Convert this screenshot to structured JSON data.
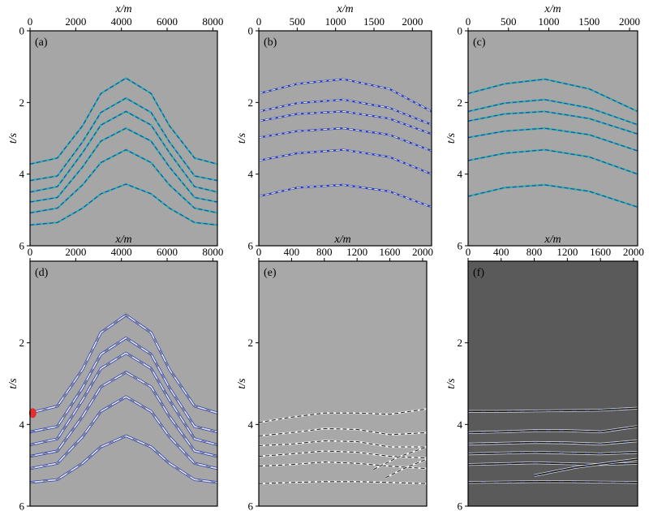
{
  "chart_data": [
    {
      "type": "line",
      "panel_label": "(a)",
      "xlabel": "x/m",
      "ylabel": "t/s",
      "xlim": [
        0,
        8200
      ],
      "ylim": [
        0,
        6
      ],
      "xticks": [
        "0",
        "2000",
        "4000",
        "6000",
        "8000"
      ],
      "yticks": [
        "0",
        "2",
        "4",
        "6"
      ],
      "background": "#a6a6a6",
      "colors": [
        "#2bb5a0",
        "#2a3fb8"
      ],
      "series": [
        {
          "x": [
            0,
            1200,
            2300,
            3100,
            4200,
            5300,
            6100,
            7200,
            8200
          ],
          "y": [
            3.72,
            3.55,
            2.65,
            1.75,
            1.32,
            1.75,
            2.65,
            3.55,
            3.72
          ]
        },
        {
          "x": [
            0,
            1200,
            2300,
            3100,
            4200,
            5300,
            6100,
            7200,
            8200
          ],
          "y": [
            4.18,
            4.05,
            3.1,
            2.28,
            1.88,
            2.28,
            3.1,
            4.05,
            4.18
          ]
        },
        {
          "x": [
            0,
            1200,
            2300,
            3100,
            4200,
            5300,
            6100,
            7200,
            8200
          ],
          "y": [
            4.5,
            4.35,
            3.4,
            2.63,
            2.25,
            2.63,
            3.4,
            4.35,
            4.5
          ]
        },
        {
          "x": [
            0,
            1200,
            2300,
            3100,
            4200,
            5300,
            6100,
            7200,
            8200
          ],
          "y": [
            4.78,
            4.65,
            3.8,
            3.08,
            2.72,
            3.08,
            3.8,
            4.65,
            4.78
          ]
        },
        {
          "x": [
            0,
            1200,
            2300,
            3100,
            4200,
            5300,
            6100,
            7200,
            8200
          ],
          "y": [
            5.08,
            4.95,
            4.3,
            3.68,
            3.32,
            3.68,
            4.3,
            4.95,
            5.08
          ]
        },
        {
          "x": [
            0,
            1200,
            2300,
            3100,
            4200,
            5300,
            6100,
            7200,
            8200
          ],
          "y": [
            5.42,
            5.35,
            4.95,
            4.55,
            4.28,
            4.55,
            4.95,
            5.35,
            5.42
          ]
        }
      ]
    },
    {
      "type": "line",
      "panel_label": "(b)",
      "xlabel": "x/m",
      "ylabel": "t/s",
      "xlim": [
        0,
        2250
      ],
      "ylim": [
        0,
        6
      ],
      "xticks": [
        "0",
        "500",
        "1000",
        "1500",
        "2000"
      ],
      "yticks": [
        "0",
        "2",
        "4",
        "6"
      ],
      "background": "#a6a6a6",
      "colors": [
        "#2a3fb8",
        "#e8e8e8"
      ],
      "series": [
        {
          "x": [
            0,
            500,
            1100,
            1700,
            2250
          ],
          "y": [
            1.75,
            1.48,
            1.35,
            1.62,
            2.25
          ]
        },
        {
          "x": [
            0,
            500,
            1100,
            1700,
            2250
          ],
          "y": [
            2.25,
            2.02,
            1.92,
            2.15,
            2.62
          ]
        },
        {
          "x": [
            0,
            500,
            1100,
            1700,
            2250
          ],
          "y": [
            2.52,
            2.32,
            2.25,
            2.45,
            2.88
          ]
        },
        {
          "x": [
            0,
            500,
            1100,
            1700,
            2250
          ],
          "y": [
            2.98,
            2.8,
            2.72,
            2.9,
            3.35
          ]
        },
        {
          "x": [
            0,
            500,
            1100,
            1700,
            2250
          ],
          "y": [
            3.62,
            3.42,
            3.32,
            3.52,
            4.0
          ]
        },
        {
          "x": [
            0,
            500,
            1100,
            1700,
            2250
          ],
          "y": [
            4.62,
            4.38,
            4.3,
            4.48,
            4.92
          ]
        }
      ]
    },
    {
      "type": "line",
      "panel_label": "(c)",
      "xlabel": "x/m",
      "ylabel": "t/s",
      "xlim": [
        0,
        2100
      ],
      "ylim": [
        0,
        6
      ],
      "xticks": [
        "0",
        "500",
        "1000",
        "1500",
        "2000"
      ],
      "yticks": [
        "0",
        "2",
        "4",
        "6"
      ],
      "background": "#a6a6a6",
      "colors": [
        "#2bb5a0",
        "#2a3fb8"
      ],
      "series": [
        {
          "x": [
            0,
            450,
            950,
            1500,
            2100
          ],
          "y": [
            1.75,
            1.48,
            1.35,
            1.62,
            2.25
          ]
        },
        {
          "x": [
            0,
            450,
            950,
            1500,
            2100
          ],
          "y": [
            2.25,
            2.02,
            1.92,
            2.15,
            2.62
          ]
        },
        {
          "x": [
            0,
            450,
            950,
            1500,
            2100
          ],
          "y": [
            2.52,
            2.32,
            2.25,
            2.45,
            2.88
          ]
        },
        {
          "x": [
            0,
            450,
            950,
            1500,
            2100
          ],
          "y": [
            2.98,
            2.8,
            2.72,
            2.9,
            3.35
          ]
        },
        {
          "x": [
            0,
            450,
            950,
            1500,
            2100
          ],
          "y": [
            3.62,
            3.42,
            3.32,
            3.52,
            4.0
          ]
        },
        {
          "x": [
            0,
            450,
            950,
            1500,
            2100
          ],
          "y": [
            4.62,
            4.38,
            4.3,
            4.48,
            4.92
          ]
        }
      ]
    },
    {
      "type": "line",
      "panel_label": "(d)",
      "xlabel": "x/m",
      "ylabel": "t/s",
      "xlim": [
        0,
        8200
      ],
      "ylim": [
        0,
        6
      ],
      "xticks": [
        "0",
        "2000",
        "4000",
        "6000",
        "8000"
      ],
      "yticks": [
        "2",
        "4",
        "6"
      ],
      "background": "#a6a6a6",
      "colors": [
        "#2a3fb8",
        "#e8e8e8",
        "#1a1a1a",
        "#e03030"
      ],
      "marker": {
        "x": 120,
        "y": 3.72
      },
      "series": [
        {
          "x": [
            0,
            1200,
            2300,
            3100,
            4200,
            5300,
            6100,
            7200,
            8200
          ],
          "y": [
            3.72,
            3.55,
            2.65,
            1.75,
            1.32,
            1.75,
            2.65,
            3.55,
            3.72
          ]
        },
        {
          "x": [
            0,
            1200,
            2300,
            3100,
            4200,
            5300,
            6100,
            7200,
            8200
          ],
          "y": [
            4.18,
            4.05,
            3.1,
            2.28,
            1.88,
            2.28,
            3.1,
            4.05,
            4.18
          ]
        },
        {
          "x": [
            0,
            1200,
            2300,
            3100,
            4200,
            5300,
            6100,
            7200,
            8200
          ],
          "y": [
            4.5,
            4.35,
            3.4,
            2.63,
            2.25,
            2.63,
            3.4,
            4.35,
            4.5
          ]
        },
        {
          "x": [
            0,
            1200,
            2300,
            3100,
            4200,
            5300,
            6100,
            7200,
            8200
          ],
          "y": [
            4.78,
            4.65,
            3.8,
            3.08,
            2.72,
            3.08,
            3.8,
            4.65,
            4.78
          ]
        },
        {
          "x": [
            0,
            1200,
            2300,
            3100,
            4200,
            5300,
            6100,
            7200,
            8200
          ],
          "y": [
            5.08,
            4.95,
            4.3,
            3.68,
            3.32,
            3.68,
            4.3,
            4.95,
            5.08
          ]
        },
        {
          "x": [
            0,
            1200,
            2300,
            3100,
            4200,
            5300,
            6100,
            7200,
            8200
          ],
          "y": [
            5.42,
            5.35,
            4.95,
            4.55,
            4.28,
            4.55,
            4.95,
            5.35,
            5.42
          ]
        }
      ]
    },
    {
      "type": "line",
      "panel_label": "(e)",
      "xlabel": "x/m",
      "ylabel": "t/s",
      "xlim": [
        0,
        2050
      ],
      "ylim": [
        0,
        6
      ],
      "xticks": [
        "0",
        "400",
        "800",
        "1200",
        "1600",
        "2000"
      ],
      "yticks": [
        "2",
        "4",
        "6"
      ],
      "background": "#a8a8a8",
      "colors": [
        "#f2f2f2",
        "#2a2a2a"
      ],
      "series": [
        {
          "x": [
            0,
            400,
            800,
            1200,
            1600,
            2050
          ],
          "y": [
            3.95,
            3.82,
            3.72,
            3.72,
            3.75,
            3.62
          ]
        },
        {
          "x": [
            0,
            400,
            800,
            1200,
            1600,
            2050
          ],
          "y": [
            4.28,
            4.2,
            4.1,
            4.12,
            4.25,
            4.2
          ]
        },
        {
          "x": [
            0,
            400,
            800,
            1200,
            1600,
            2050
          ],
          "y": [
            4.52,
            4.48,
            4.4,
            4.42,
            4.55,
            4.55
          ]
        },
        {
          "x": [
            0,
            400,
            800,
            1200,
            1600,
            2050
          ],
          "y": [
            4.78,
            4.72,
            4.65,
            4.68,
            4.78,
            4.82
          ]
        },
        {
          "x": [
            0,
            400,
            800,
            1200,
            1600,
            2050
          ],
          "y": [
            5.02,
            4.98,
            4.92,
            4.95,
            5.02,
            5.08
          ]
        },
        {
          "x": [
            0,
            400,
            800,
            1200,
            1600,
            2050
          ],
          "y": [
            5.45,
            5.42,
            5.4,
            5.4,
            5.42,
            5.45
          ]
        },
        {
          "x": [
            1400,
            1700,
            2050
          ],
          "y": [
            5.1,
            4.8,
            4.55
          ]
        },
        {
          "x": [
            1550,
            1800,
            2050
          ],
          "y": [
            5.3,
            5.05,
            4.85
          ]
        }
      ]
    },
    {
      "type": "line",
      "panel_label": "(f)",
      "xlabel": "x/m",
      "ylabel": "t/s",
      "xlim": [
        0,
        2050
      ],
      "ylim": [
        0,
        6
      ],
      "xticks": [
        "0",
        "400",
        "800",
        "1200",
        "1600",
        "2000"
      ],
      "yticks": [
        "2",
        "4",
        "6"
      ],
      "background": "#5a5a5a",
      "colors": [
        "#d8d8d8",
        "#161616",
        "#2a3fb8"
      ],
      "series": [
        {
          "x": [
            0,
            400,
            800,
            1200,
            1600,
            2050
          ],
          "y": [
            3.68,
            3.68,
            3.67,
            3.66,
            3.65,
            3.6
          ]
        },
        {
          "x": [
            0,
            400,
            800,
            1200,
            1600,
            2050
          ],
          "y": [
            4.2,
            4.18,
            4.15,
            4.15,
            4.18,
            4.05
          ]
        },
        {
          "x": [
            0,
            400,
            800,
            1200,
            1600,
            2050
          ],
          "y": [
            4.48,
            4.46,
            4.44,
            4.45,
            4.48,
            4.4
          ]
        },
        {
          "x": [
            0,
            400,
            800,
            1200,
            1600,
            2050
          ],
          "y": [
            4.72,
            4.7,
            4.68,
            4.7,
            4.72,
            4.68
          ]
        },
        {
          "x": [
            0,
            400,
            800,
            1200,
            1600,
            2050
          ],
          "y": [
            4.98,
            4.96,
            4.94,
            4.96,
            4.98,
            4.95
          ]
        },
        {
          "x": [
            0,
            400,
            800,
            1200,
            1600,
            2050
          ],
          "y": [
            5.42,
            5.41,
            5.4,
            5.4,
            5.41,
            5.42
          ]
        },
        {
          "x": [
            800,
            1300,
            2050
          ],
          "y": [
            5.25,
            5.05,
            4.85
          ]
        }
      ]
    }
  ]
}
